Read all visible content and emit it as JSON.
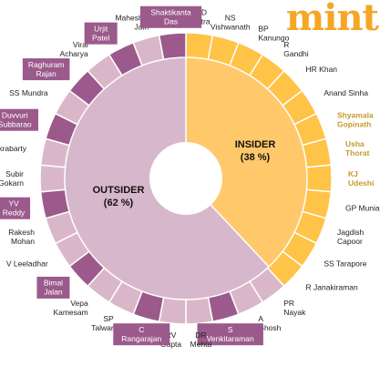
{
  "logo_text": "mint",
  "colors": {
    "insider_outer": "#ffc347",
    "insider_inner": "#ffc96b",
    "outsider_outer": "#d9b7c9",
    "outsider_inner": "#d7b7cc",
    "highlight": "#9b5a8b",
    "gold_text": "#c49a2c",
    "name_text": "#222222",
    "separator": "#ffffff"
  },
  "chart_data": {
    "type": "pie",
    "slices": [
      {
        "label": "INSIDER",
        "value": 38
      },
      {
        "label": "OUTSIDER",
        "value": 62
      }
    ],
    "slice_labels": [
      {
        "name": "INSIDER",
        "pct": "(38 %)"
      },
      {
        "name": "OUTSIDER",
        "pct": "(62 %)"
      }
    ],
    "governors": [
      {
        "name": "MD Patra",
        "group": "insider",
        "style": "plain"
      },
      {
        "name": "NS Vishwanath",
        "group": "insider",
        "style": "plain"
      },
      {
        "name": "BP Kanungo",
        "group": "insider",
        "style": "plain"
      },
      {
        "name": "R Gandhi",
        "group": "insider",
        "style": "plain"
      },
      {
        "name": "HR Khan",
        "group": "insider",
        "style": "plain"
      },
      {
        "name": "Anand Sinha",
        "group": "insider",
        "style": "plain"
      },
      {
        "name": "Shyamala Gopinath",
        "group": "insider",
        "style": "gold"
      },
      {
        "name": "Usha Thorat",
        "group": "insider",
        "style": "gold"
      },
      {
        "name": "KJ Udeshi",
        "group": "insider",
        "style": "gold"
      },
      {
        "name": "GP Muniappan",
        "group": "insider",
        "style": "plain"
      },
      {
        "name": "Jagdish Capoor",
        "group": "insider",
        "style": "plain"
      },
      {
        "name": "SS Tarapore",
        "group": "insider",
        "style": "plain"
      },
      {
        "name": "R Janakiraman",
        "group": "insider",
        "style": "plain"
      },
      {
        "name": "PR Nayak",
        "group": "outsider",
        "style": "plain"
      },
      {
        "name": "A Ghosh",
        "group": "outsider",
        "style": "plain"
      },
      {
        "name": "S Venkitaraman",
        "group": "outsider",
        "style": "box"
      },
      {
        "name": "DR Mehta",
        "group": "outsider",
        "style": "plain"
      },
      {
        "name": "RV Gupta",
        "group": "outsider",
        "style": "plain"
      },
      {
        "name": "C Rangarajan",
        "group": "outsider",
        "style": "box"
      },
      {
        "name": "SP Talwar",
        "group": "outsider",
        "style": "plain"
      },
      {
        "name": "Vepa Kamesam",
        "group": "outsider",
        "style": "plain"
      },
      {
        "name": "Bimal Jalan",
        "group": "outsider",
        "style": "box"
      },
      {
        "name": "V Leeladhar",
        "group": "outsider",
        "style": "plain"
      },
      {
        "name": "Rakesh Mohan",
        "group": "outsider",
        "style": "plain"
      },
      {
        "name": "YV Reddy",
        "group": "outsider",
        "style": "box"
      },
      {
        "name": "Subir Gokarn",
        "group": "outsider",
        "style": "plain"
      },
      {
        "name": "KC Chakrabarty",
        "group": "outsider",
        "style": "plain"
      },
      {
        "name": "Duvvuri Subbarao",
        "group": "outsider",
        "style": "box"
      },
      {
        "name": "SS Mundra",
        "group": "outsider",
        "style": "plain"
      },
      {
        "name": "Raghuram Rajan",
        "group": "outsider",
        "style": "box"
      },
      {
        "name": "Viral Acharya",
        "group": "outsider",
        "style": "plain"
      },
      {
        "name": "Urjit Patel",
        "group": "outsider",
        "style": "box"
      },
      {
        "name": "Mahesh Kumar Jain",
        "group": "outsider",
        "style": "plain"
      },
      {
        "name": "Shaktikanta Das",
        "group": "outsider",
        "style": "box"
      }
    ]
  }
}
